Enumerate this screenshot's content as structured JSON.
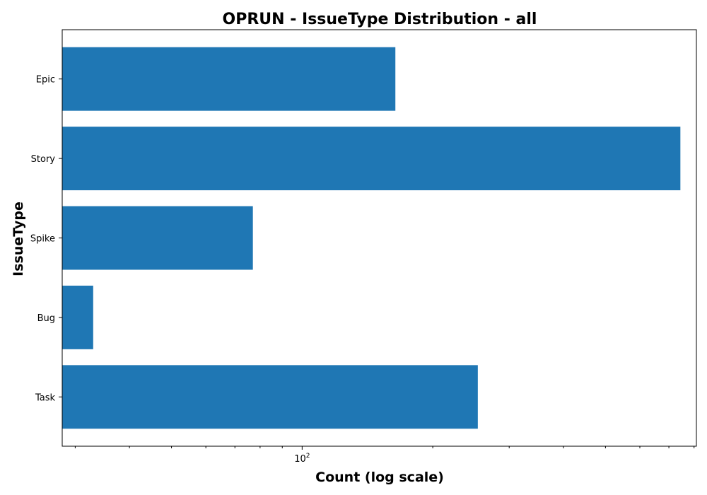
{
  "chart_data": {
    "type": "bar",
    "orientation": "horizontal",
    "title": "OPRUN - IssueType Distribution - all",
    "xlabel": "Count (log scale)",
    "ylabel": "IssueType",
    "x_scale": "log",
    "xlim": [
      28,
      810
    ],
    "x_major_tick": {
      "base": "10",
      "exponent": "2"
    },
    "categories": [
      "Epic",
      "Story",
      "Spike",
      "Bug",
      "Task"
    ],
    "values": [
      164,
      744,
      77,
      33,
      254
    ],
    "bar_color": "#1f77b4",
    "grid": false,
    "legend": false
  }
}
